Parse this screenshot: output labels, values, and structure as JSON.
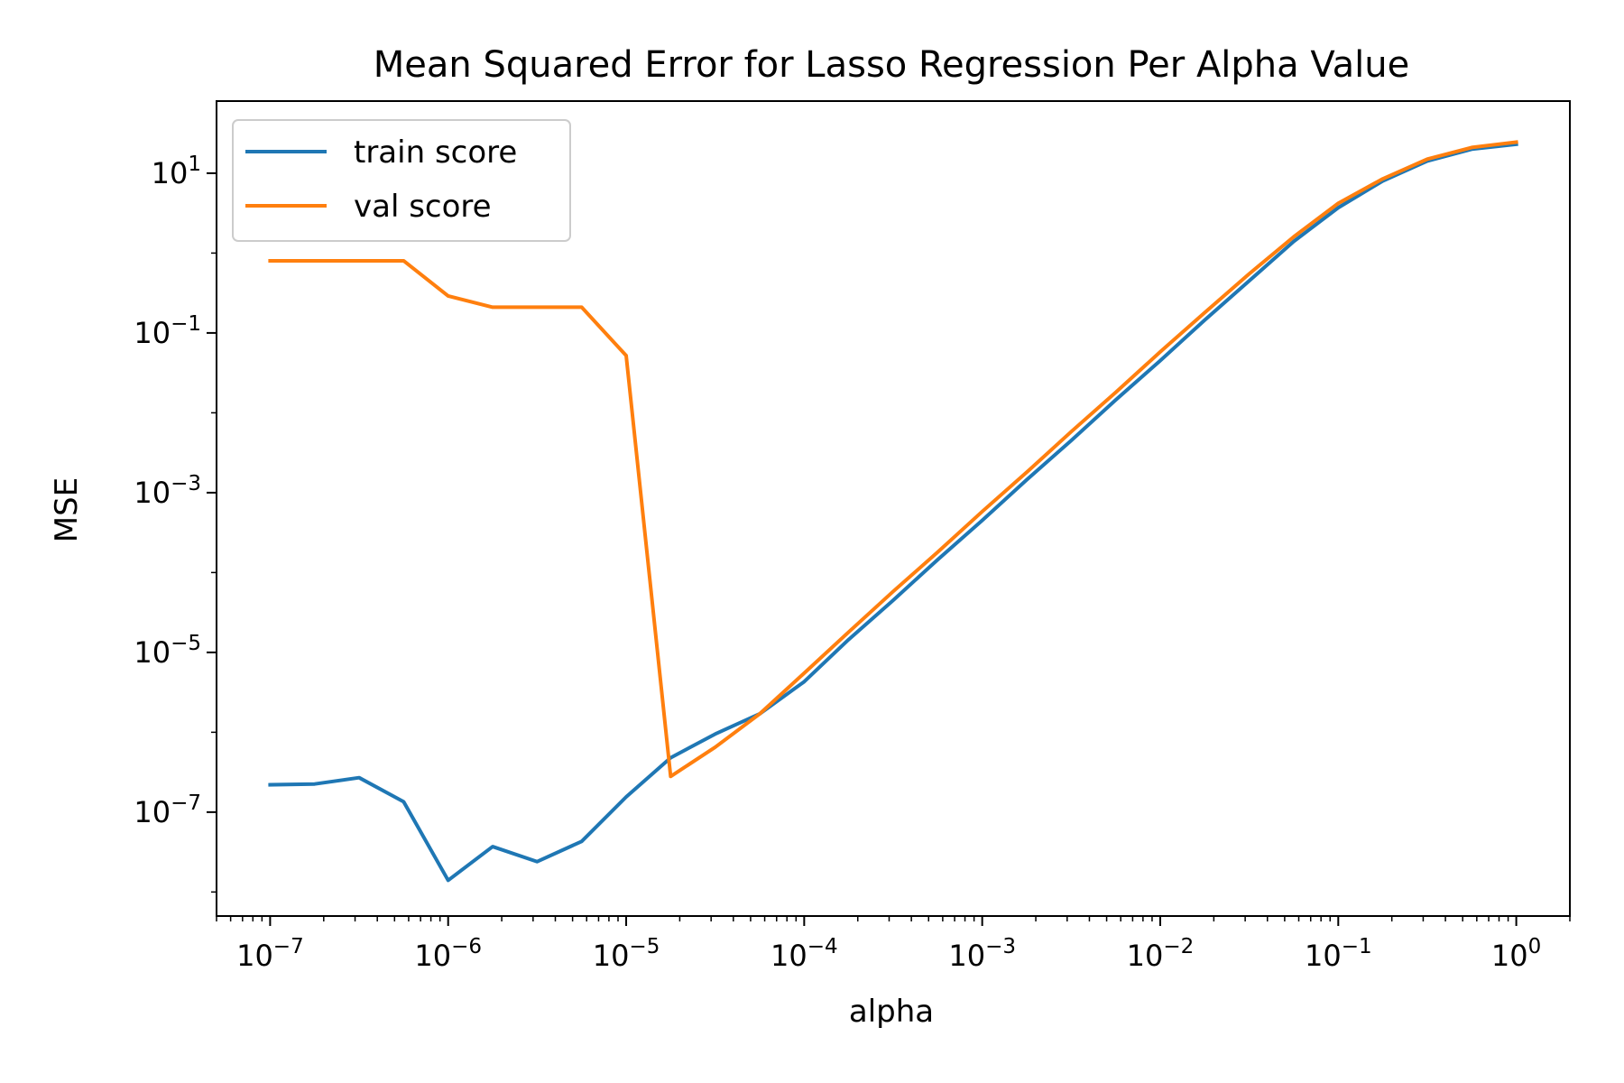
{
  "chart_data": {
    "type": "line",
    "title": "Mean Squared Error for Lasso Regression Per Alpha Value",
    "xlabel": "alpha",
    "ylabel": "MSE",
    "xscale": "log",
    "yscale": "log",
    "xlim": [
      5e-08,
      2
    ],
    "ylim": [
      5e-09,
      80
    ],
    "grid": false,
    "legend_position": "top-left",
    "x": [
      1e-07,
      1.778e-07,
      3.162e-07,
      5.623e-07,
      1e-06,
      1.778e-06,
      3.162e-06,
      5.623e-06,
      1e-05,
      1.778e-05,
      3.162e-05,
      5.623e-05,
      0.0001,
      0.0001778,
      0.0003162,
      0.0005623,
      0.001,
      0.001778,
      0.003162,
      0.005623,
      0.01,
      0.01778,
      0.03162,
      0.05623,
      0.1,
      0.1778,
      0.3162,
      0.5623,
      1.0
    ],
    "series": [
      {
        "name": "train score",
        "color": "#1f77b4",
        "values": [
          2.2e-07,
          2.25e-07,
          2.7e-07,
          1.35e-07,
          1.4e-08,
          3.7e-08,
          2.4e-08,
          4.3e-08,
          1.55e-07,
          4.8e-07,
          9.5e-07,
          1.7e-06,
          4.3e-06,
          1.45e-05,
          4.5e-05,
          0.000145,
          0.00045,
          0.00145,
          0.0045,
          0.0145,
          0.045,
          0.145,
          0.45,
          1.4,
          3.7,
          8.0,
          14.2,
          20.0,
          23.0
        ]
      },
      {
        "name": "val score",
        "color": "#ff7f0e",
        "values": [
          0.8,
          0.8,
          0.8,
          0.8,
          0.29,
          0.21,
          0.21,
          0.21,
          0.052,
          2.8e-07,
          6.5e-07,
          1.7e-06,
          5.5e-06,
          1.8e-05,
          5.8e-05,
          0.00018,
          0.00058,
          0.0018,
          0.0058,
          0.018,
          0.058,
          0.18,
          0.55,
          1.6,
          4.2,
          8.5,
          15.0,
          21.0,
          24.5
        ]
      }
    ],
    "xticks": [
      {
        "base": "10",
        "exp": "−7"
      },
      {
        "base": "10",
        "exp": "−6"
      },
      {
        "base": "10",
        "exp": "−5"
      },
      {
        "base": "10",
        "exp": "−4"
      },
      {
        "base": "10",
        "exp": "−3"
      },
      {
        "base": "10",
        "exp": "−2"
      },
      {
        "base": "10",
        "exp": "−1"
      },
      {
        "base": "10",
        "exp": "0"
      }
    ],
    "yticks": [
      {
        "base": "10",
        "exp": "−7"
      },
      {
        "base": "10",
        "exp": "−5"
      },
      {
        "base": "10",
        "exp": "−3"
      },
      {
        "base": "10",
        "exp": "−1"
      },
      {
        "base": "10",
        "exp": "1"
      }
    ]
  }
}
